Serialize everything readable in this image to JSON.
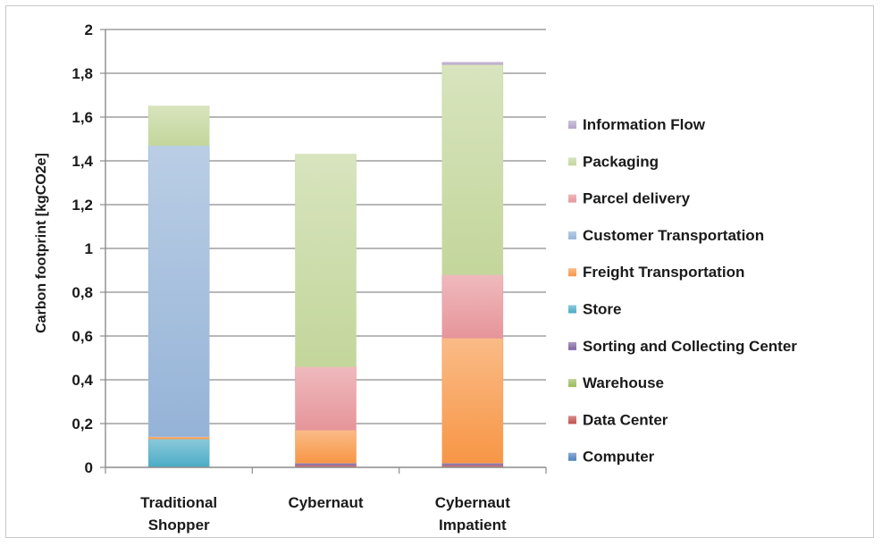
{
  "chart_data": {
    "type": "bar",
    "stacked": true,
    "title": "",
    "xlabel": "",
    "ylabel": "Carbon footprint [kgCO2e]",
    "ylim": [
      0,
      2
    ],
    "yticks": [
      "0",
      "0,2",
      "0,4",
      "0,6",
      "0,8",
      "1",
      "1,2",
      "1,4",
      "1,6",
      "1,8",
      "2"
    ],
    "ytick_values": [
      0,
      0.2,
      0.4,
      0.6,
      0.8,
      1.0,
      1.2,
      1.4,
      1.6,
      1.8,
      2.0
    ],
    "grid": true,
    "legend_position": "right",
    "categories": [
      [
        "Traditional",
        "Shopper"
      ],
      [
        "Cybernaut"
      ],
      [
        "Cybernaut",
        "Impatient"
      ]
    ],
    "series": [
      {
        "name": "Computer",
        "color": "#4f81bd",
        "values": [
          0.0,
          0.0,
          0.0
        ]
      },
      {
        "name": "Data Center",
        "color": "#c0504d",
        "values": [
          0.0,
          0.01,
          0.01
        ]
      },
      {
        "name": "Warehouse",
        "color": "#9bbb59",
        "values": [
          0.0,
          0.0,
          0.0
        ]
      },
      {
        "name": "Sorting and Collecting Center",
        "color": "#8064a2",
        "values": [
          0.0,
          0.01,
          0.01
        ]
      },
      {
        "name": "Store",
        "color": "#4bacc6",
        "values": [
          0.13,
          0.0,
          0.0
        ]
      },
      {
        "name": "Freight Transportation",
        "color": "#f79646",
        "values": [
          0.01,
          0.15,
          0.57
        ]
      },
      {
        "name": "Customer Transportation",
        "color": "#95b3d7",
        "values": [
          1.33,
          0.0,
          0.0
        ]
      },
      {
        "name": "Parcel delivery",
        "color": "#e6959a",
        "values": [
          0.0,
          0.29,
          0.29
        ]
      },
      {
        "name": "Packaging",
        "color": "#c3d69b",
        "values": [
          0.18,
          0.97,
          0.96
        ]
      },
      {
        "name": "Information Flow",
        "color": "#b3a2c7",
        "values": [
          0.0,
          0.0,
          0.01
        ]
      }
    ]
  }
}
